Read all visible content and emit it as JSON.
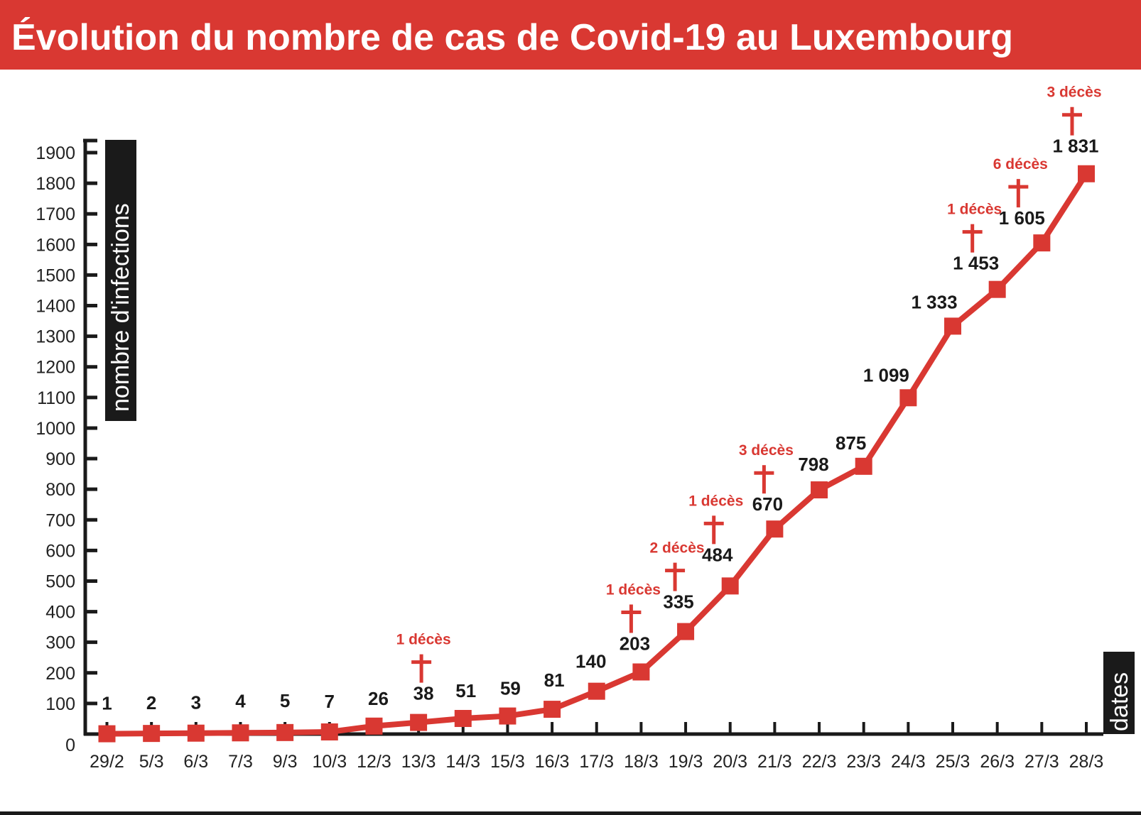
{
  "chart_data": {
    "type": "line",
    "title": "Évolution du nombre de cas de Covid-19 au Luxembourg",
    "xlabel": "dates",
    "ylabel": "nombre d'infections",
    "ylim": [
      0,
      1900
    ],
    "yticks": [
      0,
      100,
      200,
      300,
      400,
      500,
      600,
      700,
      800,
      900,
      1000,
      1100,
      1200,
      1300,
      1400,
      1500,
      1600,
      1700,
      1800,
      1900
    ],
    "categories": [
      "29/2",
      "5/3",
      "6/3",
      "7/3",
      "9/3",
      "10/3",
      "12/3",
      "13/3",
      "14/3",
      "15/3",
      "16/3",
      "17/3",
      "18/3",
      "19/3",
      "20/3",
      "21/3",
      "22/3",
      "23/3",
      "24/3",
      "25/3",
      "26/3",
      "27/3",
      "28/3"
    ],
    "values": [
      1,
      2,
      3,
      4,
      5,
      7,
      26,
      38,
      51,
      59,
      81,
      140,
      203,
      335,
      484,
      670,
      798,
      875,
      1099,
      1333,
      1453,
      1605,
      1831
    ],
    "value_labels": [
      "1",
      "2",
      "3",
      "4",
      "5",
      "7",
      "26",
      "38",
      "51",
      "59",
      "81",
      "140",
      "203",
      "335",
      "484",
      "670",
      "798",
      "875",
      "1 099",
      "1 333",
      "1 453",
      "1 605",
      "1 831"
    ],
    "deaths": [
      {
        "date": "13/3",
        "label": "1 décès"
      },
      {
        "date": "18/3",
        "label": "1 décès"
      },
      {
        "date": "19/3",
        "label": "2 décès"
      },
      {
        "date": "20/3",
        "label": "1 décès"
      },
      {
        "date": "21/3",
        "label": "3 décès"
      },
      {
        "date": "26/3",
        "label": "1 décès"
      },
      {
        "date": "27/3",
        "label": "6 décès"
      },
      {
        "date": "28/3",
        "label": "3 décès"
      }
    ],
    "grid": false,
    "colors": {
      "line": "#d93832",
      "title_bg": "#d93832",
      "axis": "#1a1a1a",
      "label_box": "#1a1a1a"
    }
  }
}
